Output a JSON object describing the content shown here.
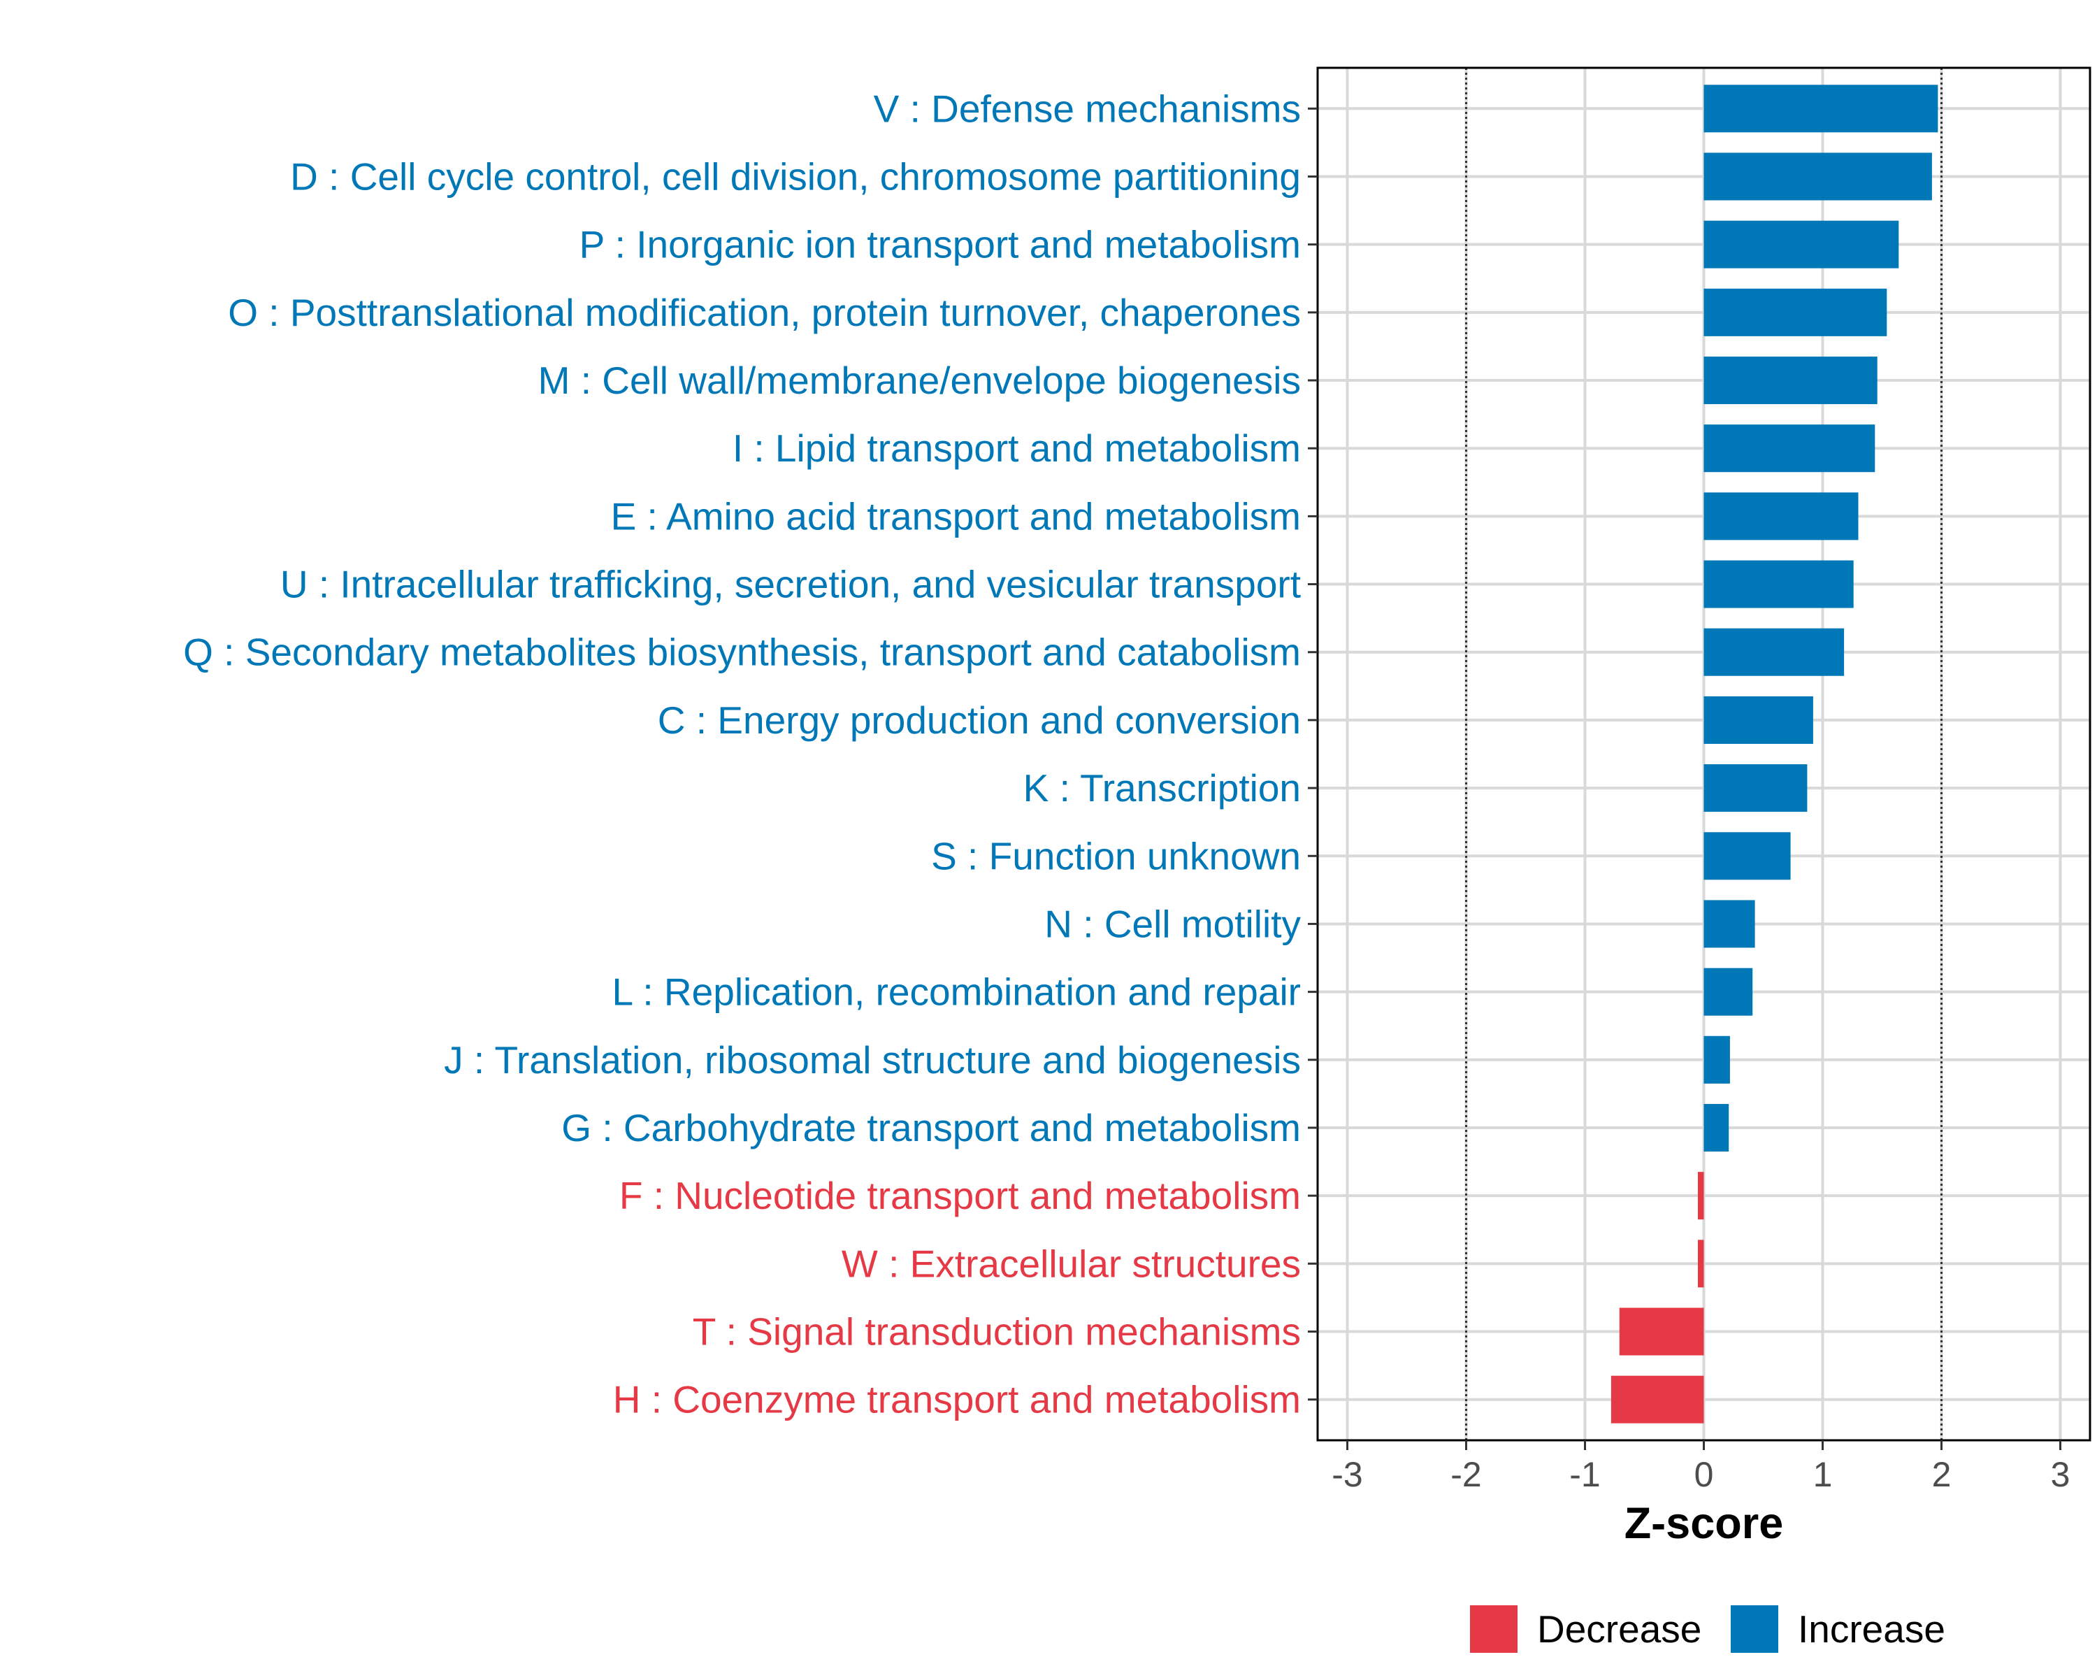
{
  "chart_data": {
    "type": "bar",
    "orientation": "horizontal",
    "xlabel": "Z-score",
    "xlim": [
      -3.25,
      3.25
    ],
    "xticks": [
      -3,
      -2,
      -1,
      0,
      1,
      2,
      3
    ],
    "reference_lines": [
      -2,
      2
    ],
    "grid": true,
    "legend_position": "bottom",
    "legend": [
      {
        "label": "Decrease",
        "color": "#e63946"
      },
      {
        "label": "Increase",
        "color": "#0077b6"
      }
    ],
    "categories": [
      "V : Defense mechanisms",
      "D : Cell cycle control, cell division, chromosome partitioning",
      "P : Inorganic ion transport and metabolism",
      "O : Posttranslational modification, protein turnover, chaperones",
      "M : Cell wall/membrane/envelope biogenesis",
      "I : Lipid transport and metabolism",
      "E : Amino acid transport and metabolism",
      "U : Intracellular trafficking, secretion, and vesicular transport",
      "Q : Secondary metabolites biosynthesis, transport and catabolism",
      "C : Energy production and conversion",
      "K : Transcription",
      "S : Function unknown",
      "N : Cell motility",
      "L : Replication, recombination and repair",
      "J : Translation, ribosomal structure and biogenesis",
      "G : Carbohydrate transport and metabolism",
      "F : Nucleotide transport and metabolism",
      "W : Extracellular structures",
      "T : Signal transduction mechanisms",
      "H : Coenzyme transport and metabolism"
    ],
    "values": [
      1.97,
      1.92,
      1.64,
      1.54,
      1.46,
      1.44,
      1.3,
      1.26,
      1.18,
      0.92,
      0.87,
      0.73,
      0.43,
      0.41,
      0.22,
      0.21,
      -0.05,
      -0.05,
      -0.71,
      -0.78
    ]
  }
}
